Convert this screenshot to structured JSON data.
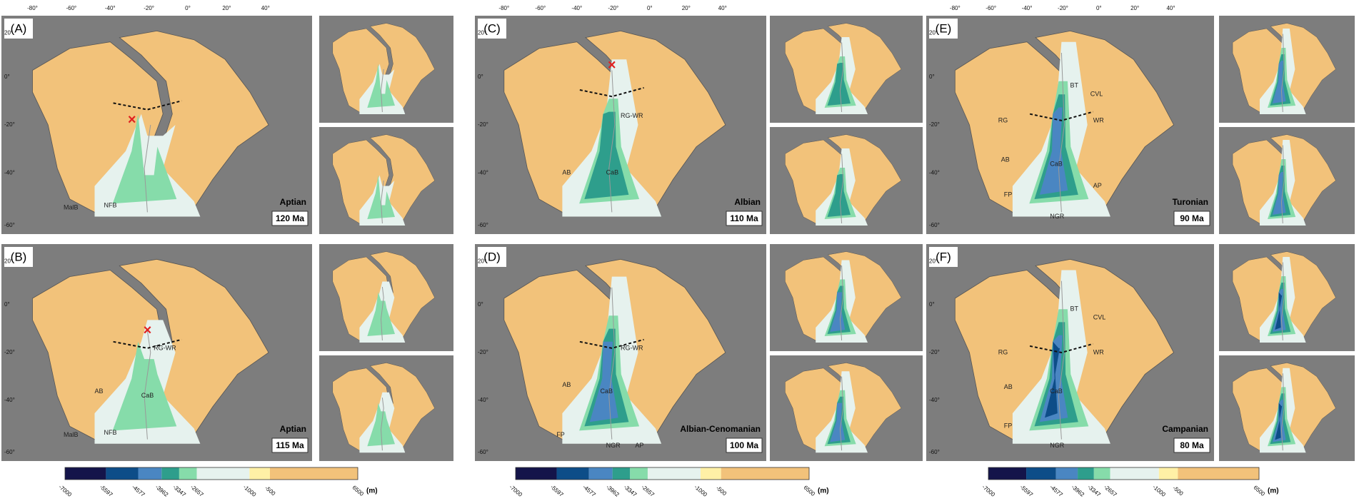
{
  "panels": [
    {
      "label": "(A)",
      "stage": "Aptian",
      "age": "120 Ma",
      "map_labels": [
        "NFB",
        "MalB"
      ]
    },
    {
      "label": "(B)",
      "stage": "Aptian",
      "age": "115 Ma",
      "map_labels": [
        "RG-WR",
        "AB",
        "CaB",
        "NFB",
        "MalB"
      ]
    },
    {
      "label": "(C)",
      "stage": "Albian",
      "age": "110 Ma",
      "map_labels": [
        "RG-WR",
        "AB",
        "CaB"
      ]
    },
    {
      "label": "(D)",
      "stage": "Albian-Cenomanian",
      "age": "100 Ma",
      "map_labels": [
        "RG-WR",
        "AB",
        "CaB",
        "FP",
        "NGR",
        "AP"
      ]
    },
    {
      "label": "(E)",
      "stage": "Turonian",
      "age": "90 Ma",
      "map_labels": [
        "BT",
        "CVL",
        "RG",
        "WR",
        "AB",
        "CaB",
        "FP",
        "AP",
        "NGR"
      ]
    },
    {
      "label": "(F)",
      "stage": "Campanian",
      "age": "80 Ma",
      "map_labels": [
        "BT",
        "CVL",
        "RG",
        "WR",
        "AB",
        "CaB",
        "FP",
        "NGR"
      ]
    }
  ],
  "longitude_ticks": [
    "-80°",
    "-60°",
    "-40°",
    "-20°",
    "0°",
    "20°",
    "40°"
  ],
  "latitude_ticks": [
    "20°",
    "0°",
    "-20°",
    "-40°",
    "-60°"
  ],
  "colorbar": {
    "labels": [
      "-7000",
      "-5597",
      "-4577",
      "-3962",
      "-3347",
      "-2657",
      "-1000",
      "-500",
      "6500"
    ],
    "unit": "(m)",
    "colors": [
      "#14144a",
      "#0d4d88",
      "#4a86c2",
      "#2e9e8c",
      "#86dcaa",
      "#e6f2ee",
      "#fff0a6",
      "#f2c27a"
    ]
  }
}
